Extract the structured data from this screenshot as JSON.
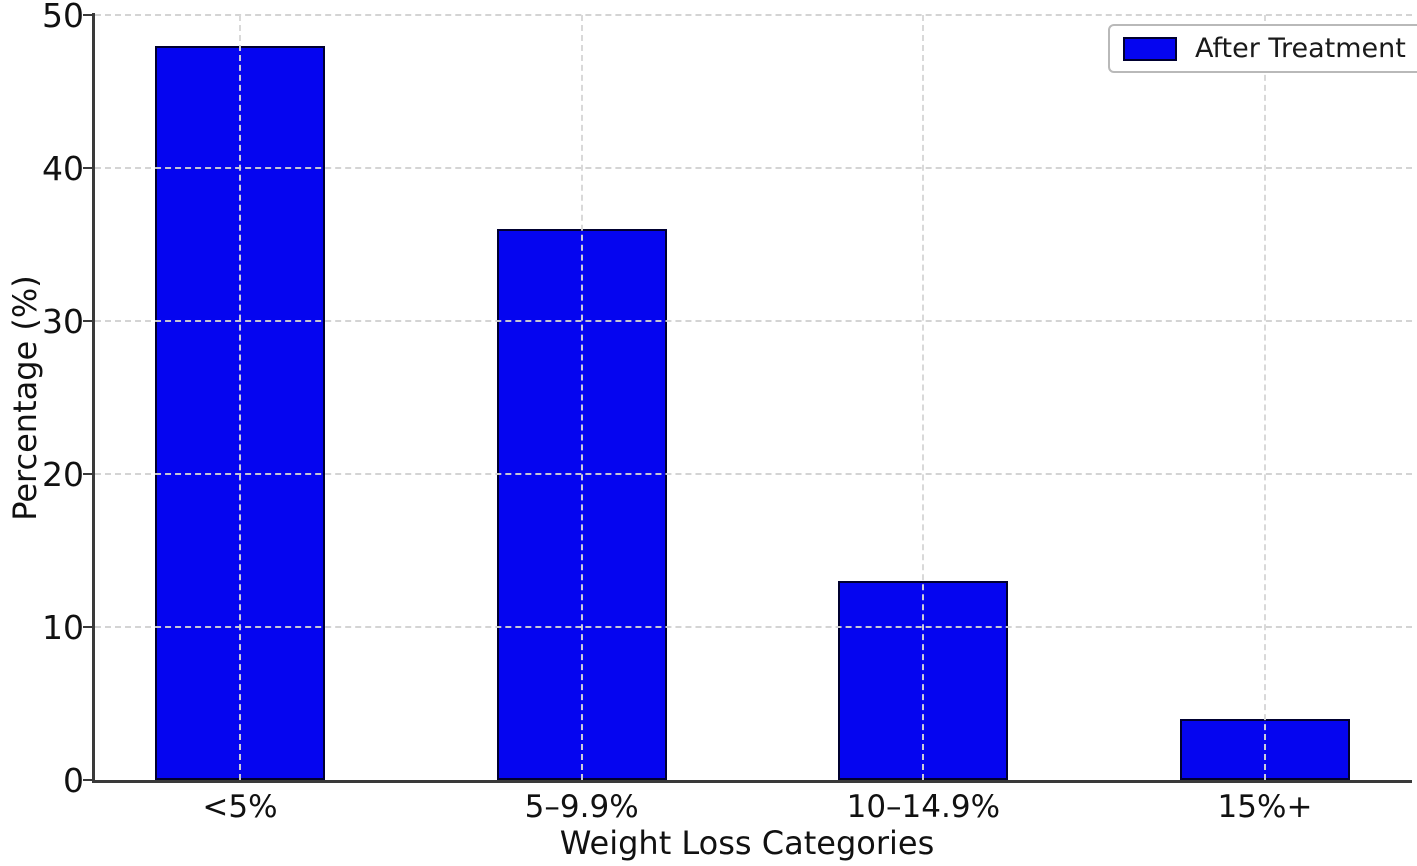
{
  "chart_data": {
    "type": "bar",
    "title": "",
    "categories": [
      "<5%",
      "5–9.9%",
      "10–14.9%",
      "15%+"
    ],
    "series": [
      {
        "name": "After Treatment",
        "values": [
          48,
          36,
          13,
          4
        ]
      }
    ],
    "xlabel": "Weight Loss Categories",
    "ylabel": "Percentage (%)",
    "ylim": [
      0,
      50
    ],
    "yticks": [
      0,
      10,
      20,
      30,
      40,
      50
    ],
    "grid": true,
    "grid_style": "dashed",
    "legend_position": "upper right",
    "colors": {
      "bar_fill": "#0505f0",
      "bar_edge": "#000030",
      "spine": "#3a3a3a",
      "grid": "#d4d4d4",
      "text": "#111111"
    }
  }
}
